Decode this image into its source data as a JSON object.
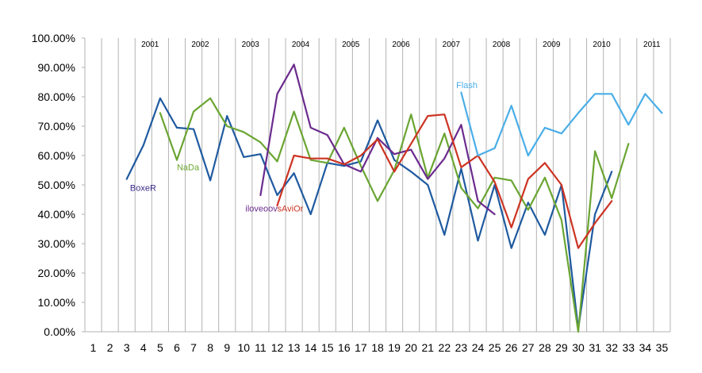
{
  "chart_data": {
    "type": "line",
    "title": "",
    "xlabel": "",
    "ylabel": "",
    "x": [
      1,
      2,
      3,
      4,
      5,
      6,
      7,
      8,
      9,
      10,
      11,
      12,
      13,
      14,
      15,
      16,
      17,
      18,
      19,
      20,
      21,
      22,
      23,
      24,
      25,
      26,
      27,
      28,
      29,
      30,
      31,
      32,
      33,
      34,
      35
    ],
    "ylim": [
      0,
      1
    ],
    "y_tick_labels": [
      "0.00%",
      "10.00%",
      "20.00%",
      "30.00%",
      "40.00%",
      "50.00%",
      "60.00%",
      "70.00%",
      "80.00%",
      "90.00%",
      "100.00%"
    ],
    "grid": "vertical",
    "year_labels": [
      {
        "text": "2001",
        "x": 4.4
      },
      {
        "text": "2002",
        "x": 7.4
      },
      {
        "text": "2003",
        "x": 10.4
      },
      {
        "text": "2004",
        "x": 13.4
      },
      {
        "text": "2005",
        "x": 16.4
      },
      {
        "text": "2006",
        "x": 19.4
      },
      {
        "text": "2007",
        "x": 22.4
      },
      {
        "text": "2008",
        "x": 25.4
      },
      {
        "text": "2009",
        "x": 28.4
      },
      {
        "text": "2010",
        "x": 31.4
      },
      {
        "text": "2011",
        "x": 34.4
      }
    ],
    "series": [
      {
        "name": "BoxeR",
        "color": "#1f5aa0",
        "label_color": "#3a2d8a",
        "label_x": 3.2,
        "label_y": 0.48,
        "x": [
          3,
          4,
          5,
          6,
          7,
          8,
          9,
          10,
          11,
          12,
          13,
          14,
          15,
          16,
          17,
          18,
          19,
          20,
          21,
          22,
          23,
          24,
          25,
          26,
          27,
          28,
          29,
          30,
          31,
          32
        ],
        "values": [
          0.52,
          0.635,
          0.795,
          0.695,
          0.69,
          0.515,
          0.735,
          0.595,
          0.605,
          0.465,
          0.54,
          0.4,
          0.575,
          0.565,
          0.58,
          0.72,
          0.585,
          0.545,
          0.5,
          0.33,
          0.555,
          0.31,
          0.5,
          0.285,
          0.44,
          0.33,
          0.5,
          0.01,
          0.4,
          0.545
        ]
      },
      {
        "name": "NaDa",
        "color": "#6aa532",
        "label_color": "#6aa532",
        "label_x": 6.0,
        "label_y": 0.55,
        "x": [
          5,
          6,
          7,
          8,
          9,
          10,
          11,
          12,
          13,
          14,
          15,
          16,
          17,
          18,
          19,
          20,
          21,
          22,
          23,
          24,
          25,
          26,
          27,
          28,
          29,
          30,
          31,
          32,
          33
        ],
        "values": [
          0.745,
          0.585,
          0.75,
          0.795,
          0.7,
          0.68,
          0.645,
          0.58,
          0.75,
          0.585,
          0.575,
          0.695,
          0.565,
          0.445,
          0.55,
          0.74,
          0.525,
          0.675,
          0.49,
          0.42,
          0.525,
          0.515,
          0.415,
          0.525,
          0.38,
          0.0,
          0.615,
          0.455,
          0.64
        ]
      },
      {
        "name": "iloveoov",
        "color": "#6b2b8e",
        "label_color": "#6b2b8e",
        "label_x": 10.1,
        "label_y": 0.41,
        "x": [
          11,
          12,
          13,
          14,
          15,
          16,
          17,
          18,
          19,
          20,
          21,
          22,
          23,
          24,
          25
        ],
        "values": [
          0.465,
          0.81,
          0.91,
          0.695,
          0.67,
          0.57,
          0.545,
          0.66,
          0.605,
          0.62,
          0.52,
          0.59,
          0.705,
          0.445,
          0.4
        ]
      },
      {
        "name": "sAviOr",
        "color": "#cc3322",
        "label_color": "#cc3322",
        "label_x": 12.0,
        "label_y": 0.41,
        "x": [
          12,
          13,
          14,
          15,
          16,
          17,
          18,
          19,
          20,
          21,
          22,
          23,
          24,
          25,
          26,
          27,
          28,
          29,
          30,
          31,
          32
        ],
        "values": [
          0.43,
          0.6,
          0.59,
          0.59,
          0.57,
          0.6,
          0.655,
          0.545,
          0.64,
          0.735,
          0.74,
          0.56,
          0.6,
          0.51,
          0.355,
          0.52,
          0.575,
          0.5,
          0.285,
          0.37,
          0.445
        ]
      },
      {
        "name": "Flash",
        "color": "#4aaee8",
        "label_color": "#4aaee8",
        "label_x": 22.7,
        "label_y": 0.83,
        "x": [
          23,
          24,
          25,
          26,
          27,
          28,
          29,
          30,
          31,
          32,
          33,
          34,
          35
        ],
        "values": [
          0.815,
          0.6,
          0.625,
          0.77,
          0.6,
          0.695,
          0.675,
          0.745,
          0.81,
          0.81,
          0.705,
          0.81,
          0.745
        ]
      }
    ]
  }
}
